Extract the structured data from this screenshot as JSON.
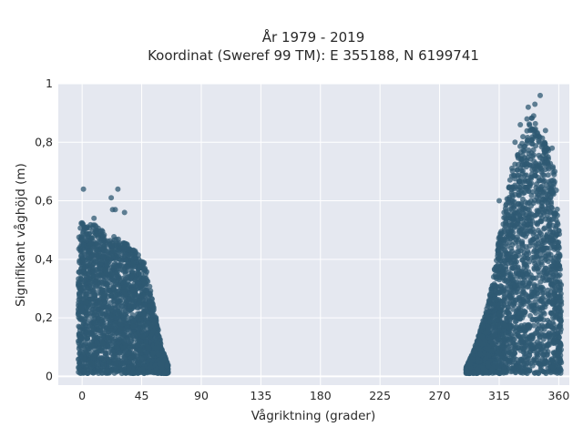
{
  "chart_data": {
    "type": "scatter",
    "title": "År 1979 - 2019",
    "subtitle": "Koordinat (Sweref 99 TM): E 355188, N 6199741",
    "xlabel": "Vågriktning (grader)",
    "ylabel": "Signifikant våghöjd (m)",
    "xlim": [
      -18,
      368
    ],
    "ylim": [
      -0.03,
      1.0
    ],
    "x_ticks": [
      0,
      45,
      90,
      135,
      180,
      225,
      270,
      315,
      360
    ],
    "x_tick_labels": [
      "0",
      "45",
      "90",
      "135",
      "180",
      "225",
      "270",
      "315",
      "360"
    ],
    "y_ticks": [
      0,
      0.2,
      0.4,
      0.6,
      0.8,
      1.0
    ],
    "y_tick_labels": [
      "0",
      "0,2",
      "0,4",
      "0,6",
      "0,8",
      "1"
    ],
    "grid": true,
    "marker_color": "#2f5a73",
    "plot_background": "#e5e8f0",
    "clusters": [
      {
        "name": "",
        "x_range": [
          -3,
          65
        ],
        "y_max": 0.64,
        "envelope": [
          [
            -3,
            0.5
          ],
          [
            0,
            0.53
          ],
          [
            5,
            0.52
          ],
          [
            10,
            0.52
          ],
          [
            15,
            0.5
          ],
          [
            20,
            0.47
          ],
          [
            25,
            0.48
          ],
          [
            30,
            0.46
          ],
          [
            35,
            0.45
          ],
          [
            40,
            0.43
          ],
          [
            45,
            0.4
          ],
          [
            48,
            0.38
          ],
          [
            50,
            0.33
          ],
          [
            55,
            0.22
          ],
          [
            60,
            0.1
          ],
          [
            65,
            0.04
          ]
        ],
        "outliers": [
          [
            1,
            0.64
          ],
          [
            9,
            0.54
          ],
          [
            22,
            0.61
          ],
          [
            27,
            0.64
          ],
          [
            25,
            0.57
          ],
          [
            32,
            0.56
          ],
          [
            23,
            0.57
          ]
        ]
      },
      {
        "name": "",
        "x_range": [
          290,
          362
        ],
        "y_max": 0.96,
        "envelope": [
          [
            290,
            0.03
          ],
          [
            295,
            0.08
          ],
          [
            300,
            0.15
          ],
          [
            305,
            0.22
          ],
          [
            310,
            0.32
          ],
          [
            315,
            0.48
          ],
          [
            320,
            0.6
          ],
          [
            325,
            0.72
          ],
          [
            330,
            0.78
          ],
          [
            335,
            0.85
          ],
          [
            340,
            0.9
          ],
          [
            345,
            0.85
          ],
          [
            350,
            0.8
          ],
          [
            355,
            0.75
          ],
          [
            358,
            0.65
          ],
          [
            361,
            0.45
          ],
          [
            362,
            0.3
          ]
        ],
        "outliers": [
          [
            315,
            0.6
          ],
          [
            327,
            0.8
          ],
          [
            331,
            0.86
          ],
          [
            337,
            0.92
          ],
          [
            342,
            0.93
          ],
          [
            346,
            0.96
          ],
          [
            350,
            0.84
          ],
          [
            355,
            0.78
          ],
          [
            357,
            0.7
          ],
          [
            359,
            0.55
          ],
          [
            336,
            0.88
          ],
          [
            341,
            0.89
          ]
        ]
      }
    ]
  }
}
